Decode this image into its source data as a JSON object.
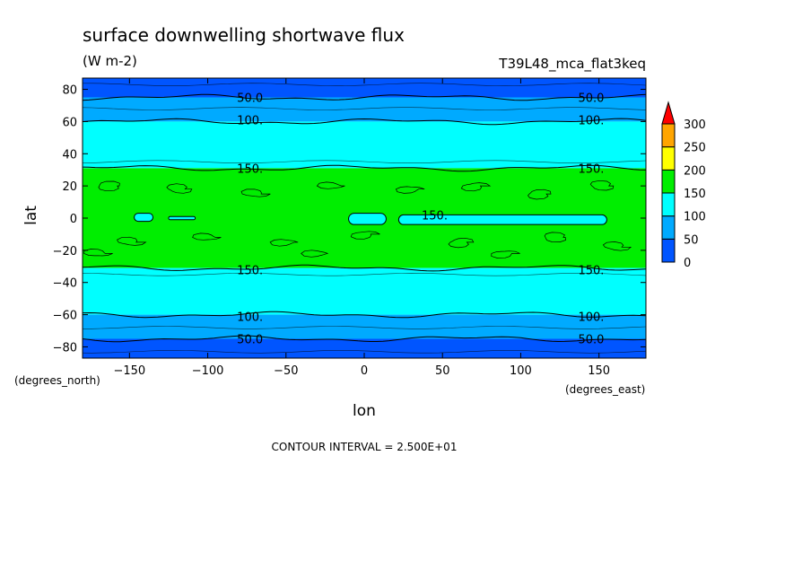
{
  "chart_data": {
    "type": "heatmap",
    "title": "surface downwelling shortwave flux",
    "units": "(W m-2)",
    "dataset": "T39L48_mca_flat3keq",
    "xlabel": "lon",
    "ylabel": "lat",
    "x_units": "(degrees_east)",
    "y_units": "(degrees_north)",
    "xlim": [
      -180,
      180
    ],
    "ylim": [
      -87,
      87
    ],
    "x_ticks": [
      -150,
      -100,
      -50,
      0,
      50,
      100,
      150
    ],
    "y_ticks": [
      -80,
      -60,
      -40,
      -20,
      0,
      20,
      40,
      60,
      80
    ],
    "footer": "CONTOUR INTERVAL = 2.500E+01",
    "colorbar": {
      "levels": [
        0,
        50,
        100,
        150,
        200,
        250,
        300
      ],
      "colors": [
        "#0055ff",
        "#00aaff",
        "#00ffff",
        "#00ee00",
        "#ffff00",
        "#ffa500",
        "#ff0000"
      ]
    },
    "bands": [
      {
        "lat_from": 75,
        "lat_to": 87,
        "color": "#0055ff"
      },
      {
        "lat_from": 60,
        "lat_to": 75,
        "color": "#00aaff"
      },
      {
        "lat_from": 31,
        "lat_to": 60,
        "color": "#00ffff"
      },
      {
        "lat_from": -31,
        "lat_to": 31,
        "color": "#00ee00"
      },
      {
        "lat_from": -60,
        "lat_to": -31,
        "color": "#00ffff"
      },
      {
        "lat_from": -75,
        "lat_to": -60,
        "color": "#00aaff"
      },
      {
        "lat_from": -87,
        "lat_to": -75,
        "color": "#0055ff"
      }
    ],
    "equatorial_patches": [
      {
        "lon_from": -10,
        "lon_to": 14,
        "lat_from": -4,
        "lat_to": 3
      },
      {
        "lon_from": 22,
        "lon_to": 155,
        "lat_from": -4,
        "lat_to": 2
      },
      {
        "lon_from": -147,
        "lon_to": -135,
        "lat_from": -2,
        "lat_to": 3
      },
      {
        "lon_from": -125,
        "lon_to": -108,
        "lat_from": -1,
        "lat_to": 1
      }
    ],
    "contour_labels": [
      {
        "text": "50.0",
        "lon": -73,
        "lat": 75
      },
      {
        "text": "50.0",
        "lon": 145,
        "lat": 75
      },
      {
        "text": "100.",
        "lon": -73,
        "lat": 61
      },
      {
        "text": "100.",
        "lon": 145,
        "lat": 61
      },
      {
        "text": "150.",
        "lon": -73,
        "lat": 31
      },
      {
        "text": "150.",
        "lon": 145,
        "lat": 31
      },
      {
        "text": "150.",
        "lon": 45,
        "lat": 2
      },
      {
        "text": "150.",
        "lon": -73,
        "lat": -32
      },
      {
        "text": "150.",
        "lon": 145,
        "lat": -32
      },
      {
        "text": "100.",
        "lon": -73,
        "lat": -61
      },
      {
        "text": "100.",
        "lon": 145,
        "lat": -61
      },
      {
        "text": "50.0",
        "lon": -73,
        "lat": -75
      },
      {
        "text": "50.0",
        "lon": 145,
        "lat": -75
      }
    ]
  }
}
